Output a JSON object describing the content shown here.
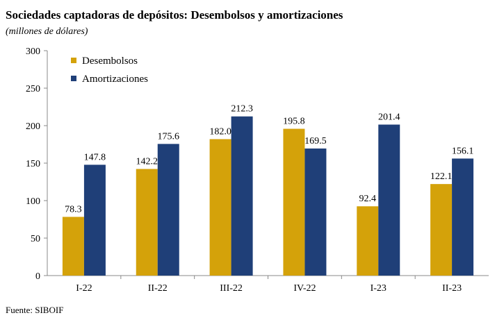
{
  "header": {
    "title": "Sociedades captadoras de depósitos: Desembolsos y amortizaciones",
    "subtitle": "(millones de dólares)"
  },
  "footer": {
    "source": "Fuente: SIBOIF"
  },
  "colors": {
    "desembolsos": "#D4A20A",
    "amortizaciones": "#1F3F78"
  },
  "chart_data": {
    "type": "bar",
    "categories": [
      "I-22",
      "II-22",
      "III-22",
      "IV-22",
      "I-23",
      "II-23"
    ],
    "series": [
      {
        "name": "Desembolsos",
        "values": [
          78.3,
          142.2,
          182.0,
          195.8,
          92.4,
          122.1
        ]
      },
      {
        "name": "Amortizaciones",
        "values": [
          147.8,
          175.6,
          212.3,
          169.5,
          201.4,
          156.1
        ]
      }
    ],
    "data_labels": [
      [
        "78.3",
        "142.2",
        "182.0",
        "195.8",
        "92.4",
        "122.1"
      ],
      [
        "147.8",
        "175.6",
        "212.3",
        "169.5",
        "201.4",
        "156.1"
      ]
    ],
    "ylim": [
      0,
      300
    ],
    "yticks": [
      0,
      50,
      100,
      150,
      200,
      250,
      300
    ],
    "grid": false,
    "legend": "top-left"
  }
}
